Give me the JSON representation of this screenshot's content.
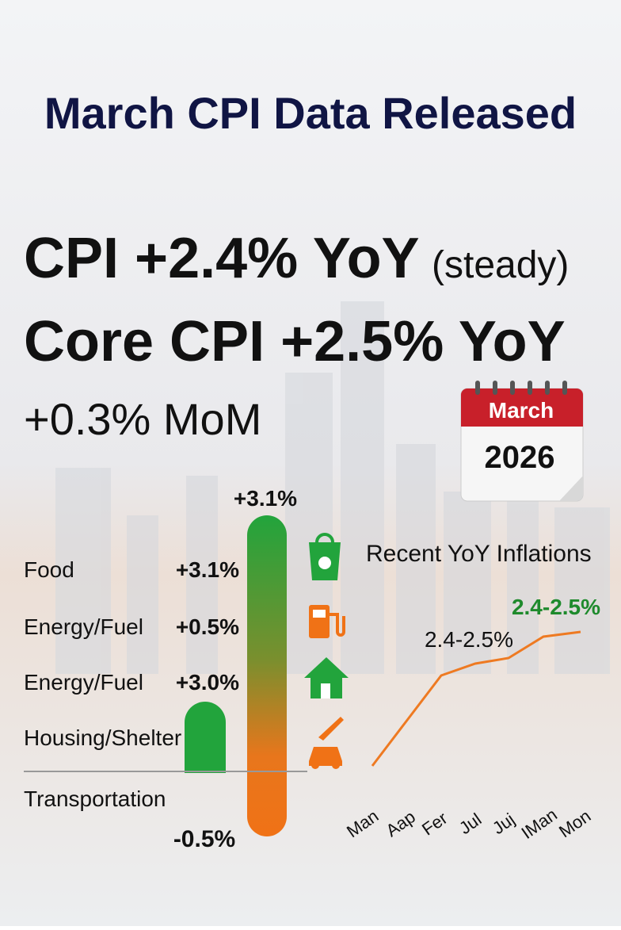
{
  "header": {
    "title": "March CPI Data Released"
  },
  "headline": {
    "cpi": "CPI +2.4% YoY",
    "cpi_note": "(steady)",
    "core": "Core CPI +2.5% YoY",
    "mom": "+0.3% MoM"
  },
  "calendar": {
    "month": "March",
    "year": "2026"
  },
  "bar": {
    "top_label": "+3.1%",
    "bottom_label": "-0.5%"
  },
  "components": [
    {
      "name": "Food",
      "value": "+3.1%"
    },
    {
      "name": "Energy/Fuel",
      "value": "+0.5%"
    },
    {
      "name": "Energy/Fuel",
      "value": "+3.0%"
    },
    {
      "name": "Housing/Shelter"
    },
    {
      "name": "Transportation"
    }
  ],
  "trend": {
    "title": "Recent YoY Inflations",
    "label_mid": "2.4-2.5%",
    "label_end": "2.4-2.5%",
    "months": [
      "Man",
      "Aap",
      "Fer",
      "Jul",
      "Juj",
      "IMan",
      "Mon"
    ]
  }
}
